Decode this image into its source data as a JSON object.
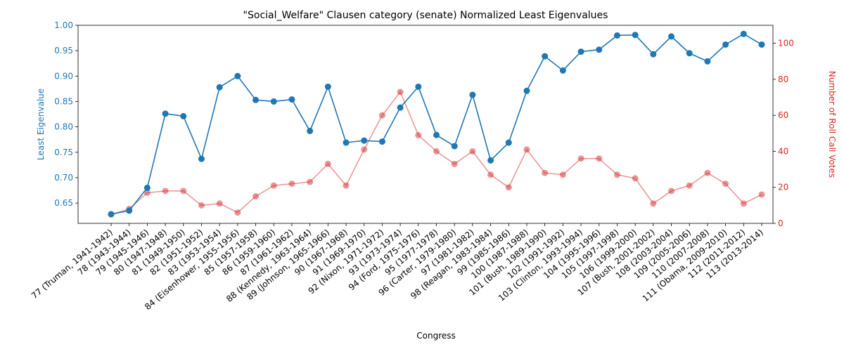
{
  "chart_data": {
    "type": "line",
    "title": "\"Social_Welfare\" Clausen category (senate) Normalized Least Eigenvalues",
    "xlabel": "Congress",
    "ylabel_left": "Least Eigenvalue",
    "ylabel_right": "Number of Roll Call Votes",
    "ylim_left": [
      0.61,
      1.0
    ],
    "ylim_right": [
      0,
      110
    ],
    "left_ticks": [
      "0.65",
      "0.70",
      "0.75",
      "0.80",
      "0.85",
      "0.90",
      "0.95",
      "1.00"
    ],
    "right_ticks": [
      "0",
      "20",
      "40",
      "60",
      "80",
      "100"
    ],
    "colors": {
      "left": "#1f77b4",
      "right": "#d62728"
    },
    "categories": [
      "77 (Truman, 1941-1942)",
      "78 (1943-1944)",
      "79 (1945-1946)",
      "80 (1947-1948)",
      "81 (1949-1950)",
      "82 (1951-1952)",
      "83 (1953-1954)",
      "84 (Eisenhower, 1955-1956)",
      "85 (1957-1958)",
      "86 (1959-1960)",
      "87 (1961-1962)",
      "88 (Kennedy, 1963-1964)",
      "89 (Johnson, 1965-1966)",
      "90 (1967-1968)",
      "91 (1969-1970)",
      "92 (Nixon, 1971-1972)",
      "93 (1973-1974)",
      "94 (Ford, 1975-1976)",
      "95 (1977-1978)",
      "96 (Carter, 1979-1980)",
      "97 (1981-1982)",
      "98 (Reagan, 1983-1984)",
      "99 (1985-1986)",
      "100 (1987-1988)",
      "101 (Bush, 1989-1990)",
      "102 (1991-1992)",
      "103 (Clinton, 1993-1994)",
      "104 (1995-1996)",
      "105 (1997-1998)",
      "106 (1999-2000)",
      "107 (Bush, 2001-2002)",
      "108 (2003-2004)",
      "109 (2005-2006)",
      "110 (2007-2008)",
      "111 (Obama, 2009-2010)",
      "112 (2011-2012)",
      "113 (2013-2014)"
    ],
    "series": [
      {
        "axis": "left",
        "values": [
          0.628,
          0.635,
          0.68,
          0.826,
          0.821,
          0.737,
          0.878,
          0.9,
          0.853,
          0.85,
          0.854,
          0.792,
          0.879,
          0.769,
          0.773,
          0.771,
          0.838,
          0.879,
          0.784,
          0.762,
          0.863,
          0.734,
          0.769,
          0.871,
          0.939,
          0.911,
          0.948,
          0.952,
          0.98,
          0.981,
          0.943,
          0.978,
          0.945,
          0.929,
          0.962,
          0.983,
          0.962
        ]
      },
      {
        "axis": "right",
        "values": [
          5,
          8,
          17,
          18,
          18,
          10,
          11,
          6,
          15,
          21,
          22,
          23,
          33,
          21,
          41,
          60,
          73,
          49,
          40,
          33,
          40,
          27,
          20,
          41,
          28,
          27,
          36,
          36,
          27,
          25,
          11,
          18,
          21,
          28,
          22,
          11,
          16
        ]
      }
    ],
    "grid": false,
    "legend": "none"
  }
}
